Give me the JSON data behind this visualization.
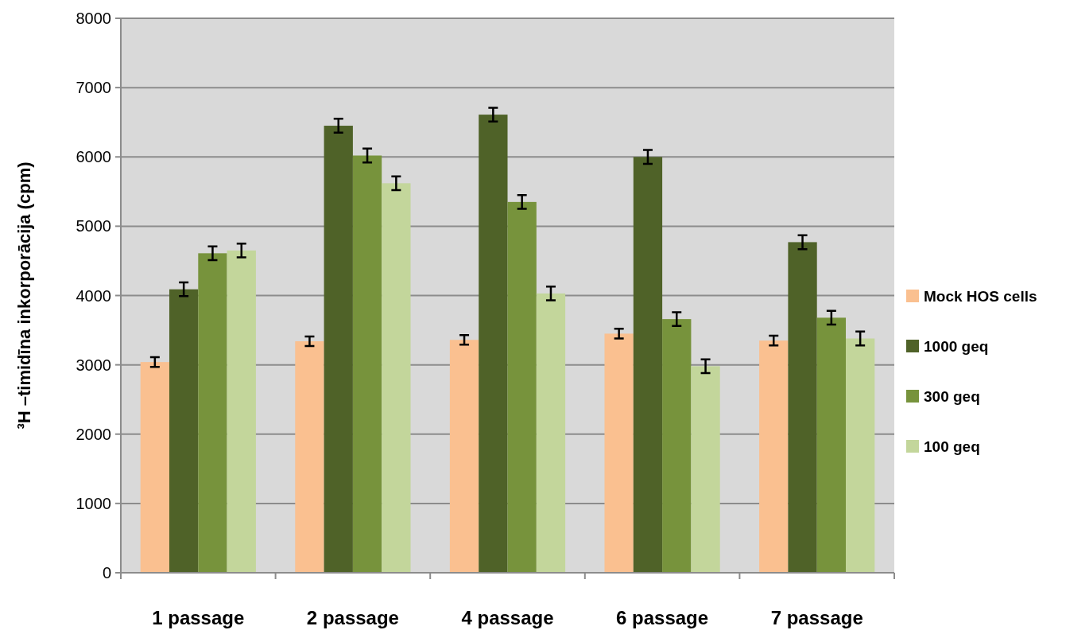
{
  "chart_data": {
    "type": "bar",
    "ylabel": "³H –timidīna inkorporācija (cpm)",
    "categories": [
      "1 passage",
      "2 passage",
      "4 passage",
      "6 passage",
      "7 passage"
    ],
    "series": [
      {
        "name": "Mock HOS cells",
        "color": "#fac090",
        "values": [
          3040,
          3340,
          3360,
          3450,
          3350
        ],
        "errors": [
          70,
          70,
          70,
          70,
          70
        ]
      },
      {
        "name": "1000 geq",
        "color": "#4f6228",
        "values": [
          4090,
          6450,
          6610,
          6000,
          4770
        ],
        "errors": [
          100,
          100,
          100,
          100,
          100
        ]
      },
      {
        "name": "300 geq",
        "color": "#77933c",
        "values": [
          4610,
          6020,
          5350,
          3660,
          3680
        ],
        "errors": [
          100,
          100,
          100,
          100,
          100
        ]
      },
      {
        "name": "100 geq",
        "color": "#c3d69b",
        "values": [
          4650,
          5620,
          4030,
          2980,
          3380
        ],
        "errors": [
          100,
          100,
          100,
          100,
          100
        ]
      }
    ],
    "ylim": [
      0,
      8000
    ],
    "yticks": [
      0,
      1000,
      2000,
      3000,
      4000,
      5000,
      6000,
      7000,
      8000
    ],
    "grid": "y",
    "legend": "right"
  }
}
